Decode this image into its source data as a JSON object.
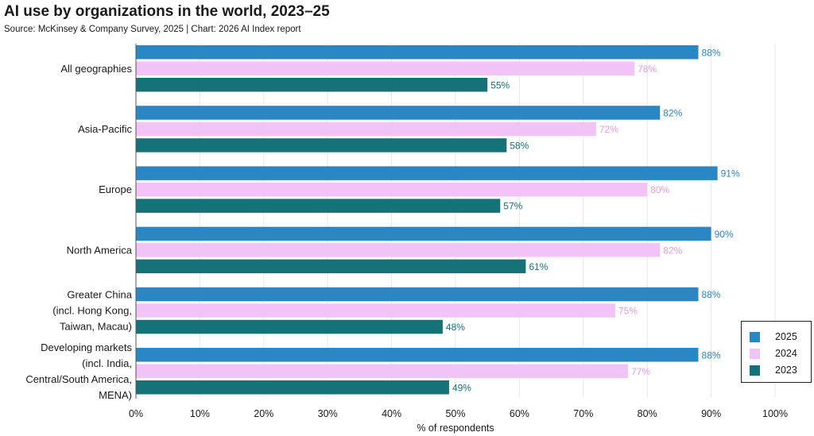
{
  "title": "AI use by organizations in the world, 2023–25",
  "subtitle": "Source: McKinsey & Company Survey, 2025 | Chart: 2026 AI Index report",
  "chart_data": {
    "type": "bar",
    "orientation": "horizontal",
    "categories": [
      [
        "All geographies"
      ],
      [
        "Asia-Pacific"
      ],
      [
        "Europe"
      ],
      [
        "North America"
      ],
      [
        "Greater China",
        "(incl. Hong Kong,",
        "Taiwan, Macau)"
      ],
      [
        "Developing markets",
        "(incl. India,",
        "Central/South America,",
        "MENA)"
      ]
    ],
    "series": [
      {
        "name": "2025",
        "color": "#2b87c4",
        "values": [
          88,
          82,
          91,
          90,
          88,
          88
        ],
        "labels": [
          "88%",
          "82%",
          "91%",
          "90%",
          "88%",
          "88%"
        ]
      },
      {
        "name": "2024",
        "color": "#f2c3f7",
        "label_color": "#e59ae6",
        "values": [
          78,
          72,
          80,
          82,
          75,
          77
        ],
        "labels": [
          "78%",
          "72%",
          "80%",
          "82%",
          "75%",
          "77%"
        ]
      },
      {
        "name": "2023",
        "color": "#147278",
        "values": [
          55,
          58,
          57,
          61,
          48,
          49
        ],
        "labels": [
          "55%",
          "58%",
          "57%",
          "61%",
          "48%",
          "49%"
        ]
      }
    ],
    "xlim": [
      0,
      100
    ],
    "xticks": [
      "0%",
      "10%",
      "20%",
      "30%",
      "40%",
      "50%",
      "60%",
      "70%",
      "80%",
      "90%",
      "100%"
    ],
    "xlabel": "% of respondents",
    "grid": true,
    "legend_position": "bottom-right",
    "legend": [
      {
        "name": "2025",
        "color": "#2b87c4"
      },
      {
        "name": "2024",
        "color": "#f2c3f7"
      },
      {
        "name": "2023",
        "color": "#147278"
      }
    ]
  }
}
